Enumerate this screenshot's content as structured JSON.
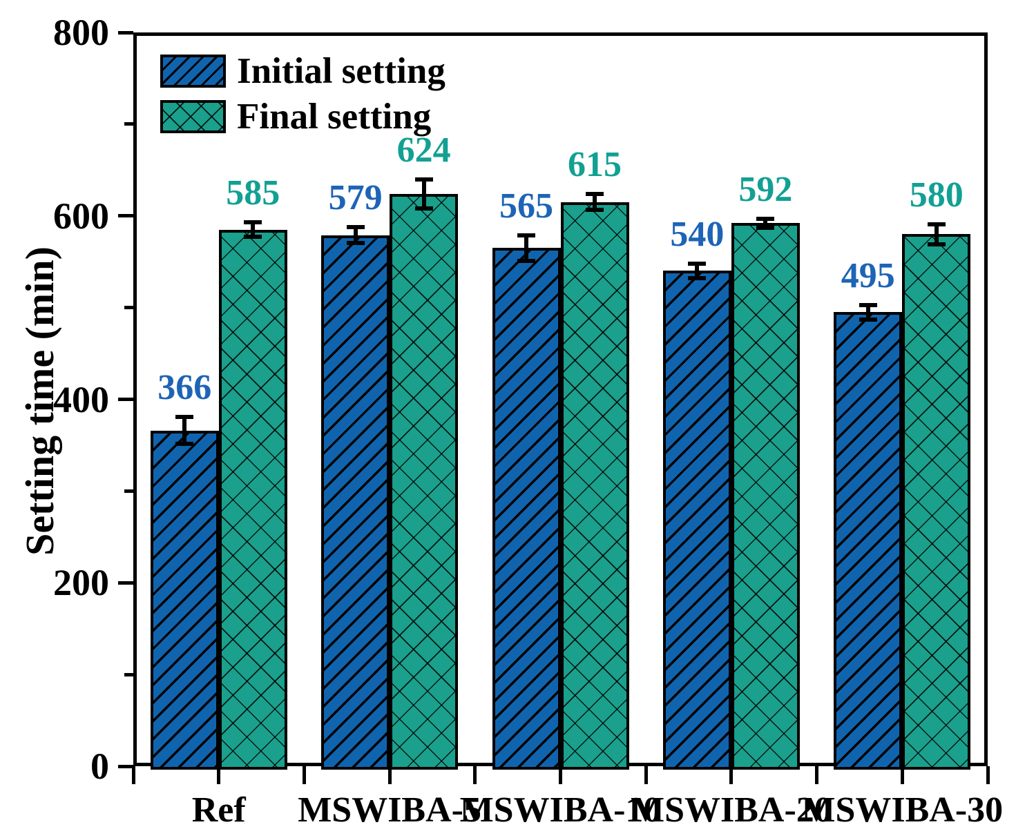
{
  "chart_data": {
    "type": "bar",
    "title": "",
    "xlabel": "",
    "ylabel": "Setting time (min)",
    "ylim": [
      0,
      800
    ],
    "y_major_ticks": [
      0,
      200,
      400,
      600,
      800
    ],
    "y_minor_ticks": [
      100,
      300,
      500,
      700
    ],
    "categories": [
      "Ref",
      "MSWIBA-5",
      "MSWIBA-10",
      "MSWIBA-20",
      "MSWIBA-30"
    ],
    "series": [
      {
        "name": "Initial setting",
        "values": [
          366,
          579,
          565,
          540,
          495
        ],
        "errors": [
          17,
          11,
          16,
          10,
          10
        ],
        "bar_color": "#1064AE",
        "label_color": "#1D64B6",
        "hatch": "diagonal"
      },
      {
        "name": "Final setting",
        "values": [
          585,
          624,
          615,
          592,
          580
        ],
        "errors": [
          10,
          18,
          11,
          7,
          13
        ],
        "bar_color": "#1AA08C",
        "label_color": "#12A093",
        "hatch": "crosshatch"
      }
    ],
    "legend_position": "top-left",
    "grid": false,
    "axis_color": "#000000"
  }
}
